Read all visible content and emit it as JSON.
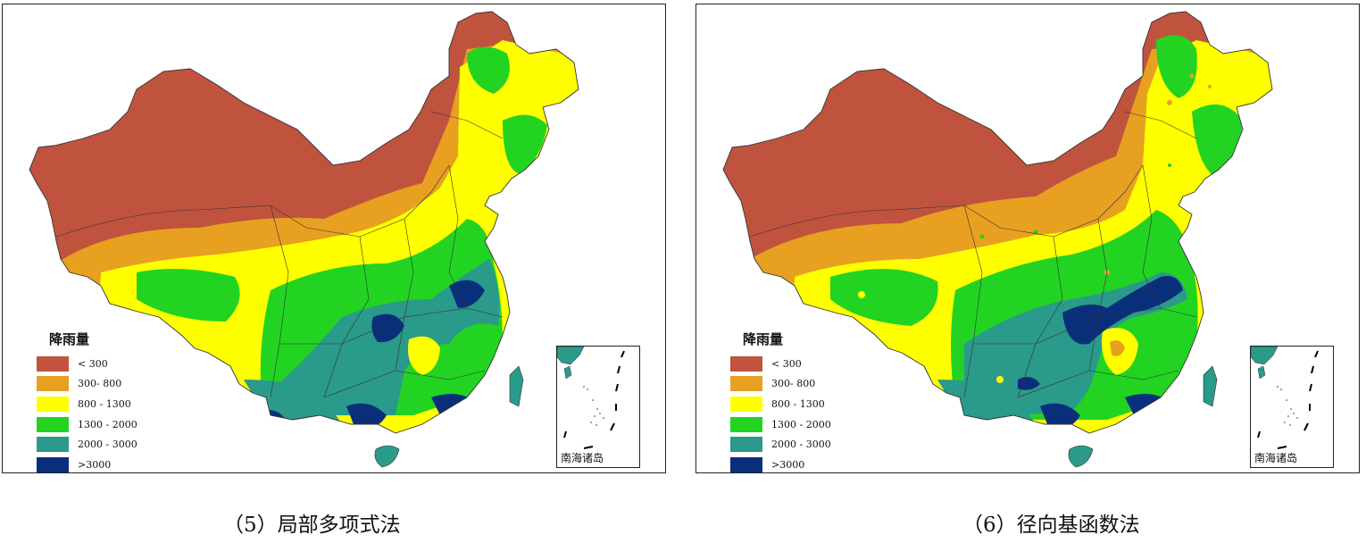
{
  "legend": {
    "title": "降雨量",
    "items": [
      {
        "label": "< 300",
        "color": "#C0533E"
      },
      {
        "label": "300- 800",
        "color": "#E8A020"
      },
      {
        "label": "800 - 1300",
        "color": "#FFFF00"
      },
      {
        "label": "1300 - 2000",
        "color": "#22D322"
      },
      {
        "label": "2000 - 3000",
        "color": "#2A9A8A"
      },
      {
        "label": ">3000",
        "color": "#0A2F7A"
      }
    ]
  },
  "inset_label": "南海诸岛",
  "panels": [
    {
      "caption": "（5）局部多项式法",
      "method": "local-polynomial"
    },
    {
      "caption": "（6）径向基函数法",
      "method": "radial-basis-function"
    }
  ]
}
